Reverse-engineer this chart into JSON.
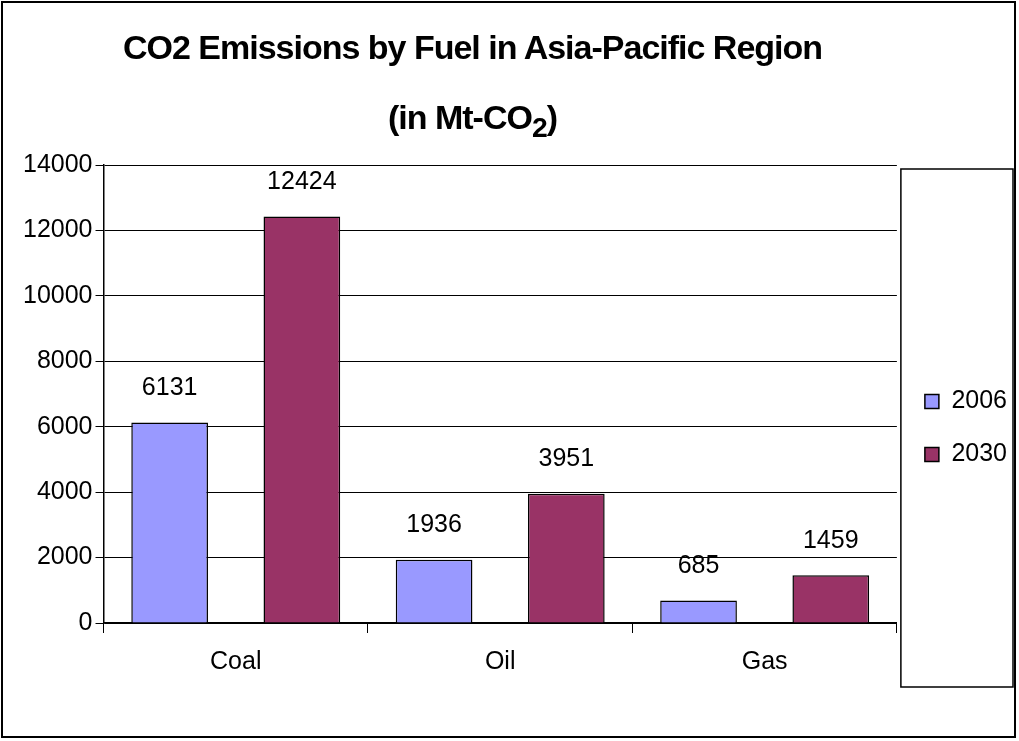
{
  "chart_data": {
    "type": "bar",
    "title": "CO2 Emissions by Fuel in Asia-Pacific Region",
    "subtitle": "(in Mt-CO$_{2}$)",
    "categories": [
      "Coal",
      "Oil",
      "Gas"
    ],
    "series": [
      {
        "name": "2006",
        "color": "#9999ff",
        "values": [
          6131,
          1936,
          685
        ]
      },
      {
        "name": "2030",
        "color": "#993366",
        "values": [
          12424,
          3951,
          1459
        ]
      }
    ],
    "ylim": [
      0,
      14000
    ],
    "yticks": [
      0,
      2000,
      4000,
      6000,
      8000,
      10000,
      12000,
      14000
    ],
    "grid": "y",
    "legend": "right",
    "data_labels": true
  }
}
